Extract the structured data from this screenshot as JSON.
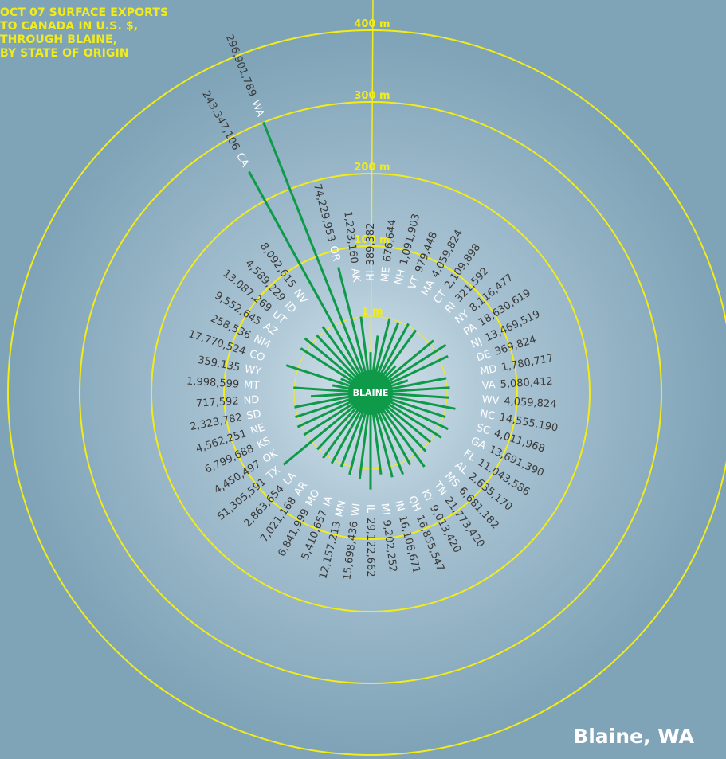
{
  "title_lines": [
    "OCT 07 SURFACE EXPORTS",
    "TO CANADA IN U.S. $,",
    "THROUGH BLAINE,",
    "BY STATE OF ORIGIN"
  ],
  "location_label": "Blaine, WA",
  "center_label": "BLAINE",
  "colors": {
    "background": "#7fa3b7",
    "ring": "#f2ec1b",
    "spoke": "#0f9a4a",
    "center_disk": "#0f9a4a",
    "title": "#f2ec1b",
    "value_text": "#3a3a3a",
    "state_text": "#ffffff"
  },
  "chart_data": {
    "type": "radial-bar",
    "center": "BLAINE",
    "rings": [
      {
        "label": "1 m",
        "value": 1000000
      },
      {
        "label": "100 m",
        "value": 100000000
      },
      {
        "label": "200 m",
        "value": 200000000
      },
      {
        "label": "300 m",
        "value": 300000000
      },
      {
        "label": "400 m",
        "value": 400000000
      }
    ],
    "states": [
      {
        "state": "HI",
        "value_label": "389,382",
        "value": 389382
      },
      {
        "state": "ME",
        "value_label": "676,644",
        "value": 676644
      },
      {
        "state": "NH",
        "value_label": "1,091,903",
        "value": 1091903
      },
      {
        "state": "VT",
        "value_label": "979,448",
        "value": 979448
      },
      {
        "state": "MA",
        "value_label": "4,059,824",
        "value": 4059824
      },
      {
        "state": "CT",
        "value_label": "2,109,898",
        "value": 2109898
      },
      {
        "state": "RI",
        "value_label": "321,592",
        "value": 321592
      },
      {
        "state": "NY",
        "value_label": "8,116,477",
        "value": 8116477
      },
      {
        "state": "PA",
        "value_label": "18,630,619",
        "value": 18630619
      },
      {
        "state": "NJ",
        "value_label": "13,469,519",
        "value": 13469519
      },
      {
        "state": "DE",
        "value_label": "369,824",
        "value": 369824
      },
      {
        "state": "MD",
        "value_label": "1,780,717",
        "value": 1780717
      },
      {
        "state": "VA",
        "value_label": "5,080,412",
        "value": 5080412
      },
      {
        "state": "WV",
        "value_label": "4,059,824",
        "value": 4059824
      },
      {
        "state": "NC",
        "value_label": "14,555,190",
        "value": 14555190
      },
      {
        "state": "SC",
        "value_label": "4,011,968",
        "value": 4011968
      },
      {
        "state": "GA",
        "value_label": "13,691,390",
        "value": 13691390
      },
      {
        "state": "FL",
        "value_label": "11,043,586",
        "value": 11043586
      },
      {
        "state": "AL",
        "value_label": "2,635,170",
        "value": 2635170
      },
      {
        "state": "MS",
        "value_label": "6,681,182",
        "value": 6681182
      },
      {
        "state": "TN",
        "value_label": "21,773,420",
        "value": 21773420
      },
      {
        "state": "KY",
        "value_label": "9,013,420",
        "value": 9013420
      },
      {
        "state": "OH",
        "value_label": "16,855,547",
        "value": 16855547
      },
      {
        "state": "IN",
        "value_label": "16,106,671",
        "value": 16106671
      },
      {
        "state": "MI",
        "value_label": "9,202,252",
        "value": 9202252
      },
      {
        "state": "IL",
        "value_label": "29,122,662",
        "value": 29122662
      },
      {
        "state": "WI",
        "value_label": "15,698,436",
        "value": 15698436
      },
      {
        "state": "MN",
        "value_label": "12,157,213",
        "value": 12157213
      },
      {
        "state": "IA",
        "value_label": "5,410,657",
        "value": 5410657
      },
      {
        "state": "MO",
        "value_label": "6,841,999",
        "value": 6841999
      },
      {
        "state": "AR",
        "value_label": "7,021,168",
        "value": 7021168
      },
      {
        "state": "LA",
        "value_label": "2,863,654",
        "value": 2863654
      },
      {
        "state": "TX",
        "value_label": "51,305,591",
        "value": 51305591
      },
      {
        "state": "OK",
        "value_label": "4,450,497",
        "value": 4450497
      },
      {
        "state": "KS",
        "value_label": "6,799,688",
        "value": 6799688
      },
      {
        "state": "NE",
        "value_label": "4,562,251",
        "value": 4562251
      },
      {
        "state": "SD",
        "value_label": "2,323,782",
        "value": 2323782
      },
      {
        "state": "ND",
        "value_label": "717,592",
        "value": 717592
      },
      {
        "state": "MT",
        "value_label": "1,998,599",
        "value": 1998599
      },
      {
        "state": "WY",
        "value_label": "359,135",
        "value": 359135
      },
      {
        "state": "CO",
        "value_label": "17,770,524",
        "value": 17770524
      },
      {
        "state": "NM",
        "value_label": "258,536",
        "value": 258536
      },
      {
        "state": "AZ",
        "value_label": "9,552,645",
        "value": 9552645
      },
      {
        "state": "UT",
        "value_label": "13,087,269",
        "value": 13087269
      },
      {
        "state": "ID",
        "value_label": "4,589,229",
        "value": 4589229
      },
      {
        "state": "NV",
        "value_label": "8,092,615",
        "value": 8092615
      },
      {
        "state": "CA",
        "value_label": "243,347,106",
        "value": 243347106
      },
      {
        "state": "WA",
        "value_label": "296,901,789",
        "value": 296901789
      },
      {
        "state": "OR",
        "value_label": "74,229,953",
        "value": 74229953
      },
      {
        "state": "AK",
        "value_label": "1,223,160",
        "value": 1223160
      }
    ]
  }
}
